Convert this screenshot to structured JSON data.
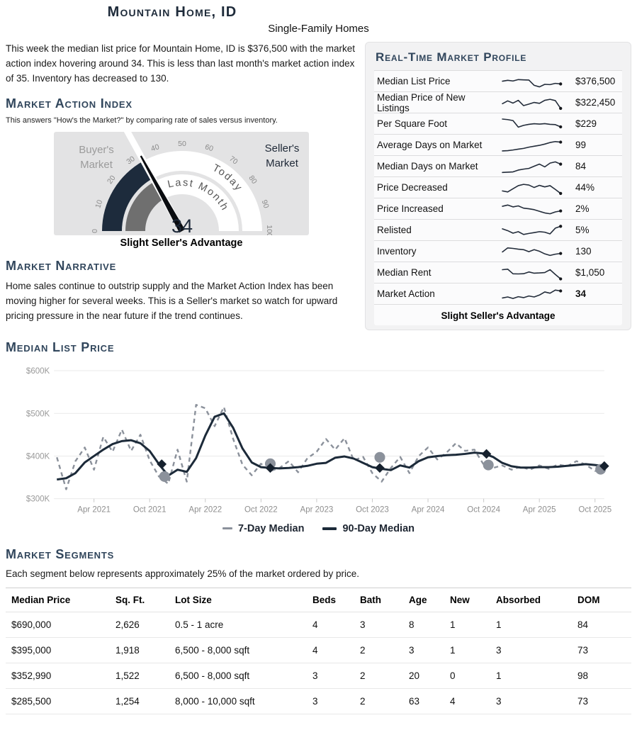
{
  "page": {
    "title": "Mountain Home, ID",
    "subtitle": "Single-Family Homes"
  },
  "intro": "This week the median list price for Mountain Home, ID is $376,500 with the market action index hovering around 34. This is less than last month's market action index of 35. Inventory has decreased to 130.",
  "market_action": {
    "heading": "Market Action Index",
    "subtext": "This answers \"How's the Market?\" by comparing rate of sales versus inventory.",
    "status": "Slight Seller's Advantage",
    "gauge": {
      "value": 34,
      "last_month": 35,
      "buyers_label": "Buyer's Market",
      "sellers_label": "Seller's Market",
      "today_label": "Today",
      "last_month_label": "Last Month",
      "ticks": [
        0,
        10,
        20,
        30,
        40,
        50,
        60,
        70,
        80,
        90,
        100
      ],
      "value_color": "#1d2b3c",
      "last_month_color": "#6f6f6f",
      "bg": "#e3e3e4",
      "needle_color": "#0a0c10",
      "tick_color": "#8a8a8a"
    }
  },
  "narrative": {
    "heading": "Market Narrative",
    "text": "Home sales continue to outstrip supply and the Market Action Index has been moving higher for several weeks. This is a Seller's market so watch for upward pricing pressure in the near future if the trend continues."
  },
  "profile": {
    "heading": "Real-Time Market Profile",
    "spark_color": "#232c3a",
    "rows": [
      {
        "label": "Median List Price",
        "value": "$376,500",
        "bold": false,
        "spark": [
          0.55,
          0.62,
          0.57,
          0.68,
          0.66,
          0.64,
          0.22,
          0.1,
          0.3,
          0.28,
          0.38,
          0.33
        ]
      },
      {
        "label": "Median Price of New Listings",
        "value": "$322,450",
        "bold": false,
        "spark": [
          0.45,
          0.68,
          0.5,
          0.72,
          0.3,
          0.42,
          0.55,
          0.48,
          0.72,
          0.8,
          0.7,
          0.08
        ]
      },
      {
        "label": "Per Square Foot",
        "value": "$229",
        "bold": false,
        "spark": [
          0.92,
          0.88,
          0.8,
          0.28,
          0.42,
          0.5,
          0.55,
          0.52,
          0.56,
          0.5,
          0.48,
          0.3
        ]
      },
      {
        "label": "Average Days on Market",
        "value": "99",
        "bold": false,
        "spark": [
          0.08,
          0.1,
          0.15,
          0.22,
          0.28,
          0.38,
          0.45,
          0.52,
          0.62,
          0.75,
          0.82,
          0.78
        ]
      },
      {
        "label": "Median Days on Market",
        "value": "84",
        "bold": false,
        "spark": [
          0.06,
          0.08,
          0.1,
          0.25,
          0.32,
          0.38,
          0.55,
          0.72,
          0.5,
          0.8,
          0.9,
          0.72
        ]
      },
      {
        "label": "Price Decreased",
        "value": "44%",
        "bold": false,
        "spark": [
          0.28,
          0.2,
          0.45,
          0.7,
          0.8,
          0.75,
          0.55,
          0.72,
          0.6,
          0.7,
          0.4,
          0.08
        ]
      },
      {
        "label": "Price Increased",
        "value": "2%",
        "bold": false,
        "spark": [
          0.75,
          0.85,
          0.7,
          0.78,
          0.6,
          0.55,
          0.48,
          0.35,
          0.22,
          0.15,
          0.3,
          0.38
        ]
      },
      {
        "label": "Relisted",
        "value": "5%",
        "bold": false,
        "spark": [
          0.65,
          0.5,
          0.3,
          0.42,
          0.2,
          0.28,
          0.35,
          0.42,
          0.38,
          0.25,
          0.7,
          0.85
        ]
      },
      {
        "label": "Inventory",
        "value": "130",
        "bold": false,
        "spark": [
          0.5,
          0.82,
          0.78,
          0.72,
          0.68,
          0.52,
          0.68,
          0.55,
          0.35,
          0.22,
          0.32,
          0.38
        ]
      },
      {
        "label": "Median Rent",
        "value": "$1,050",
        "bold": false,
        "spark": [
          0.78,
          0.82,
          0.45,
          0.44,
          0.46,
          0.6,
          0.5,
          0.52,
          0.55,
          0.78,
          0.4,
          0.05
        ]
      },
      {
        "label": "Market Action",
        "value": "34",
        "bold": true,
        "spark": [
          0.22,
          0.3,
          0.18,
          0.32,
          0.25,
          0.38,
          0.3,
          0.45,
          0.7,
          0.6,
          0.85,
          0.78
        ]
      }
    ],
    "footer": "Slight Seller's Advantage"
  },
  "chart_data": {
    "type": "line",
    "title": "Median List Price",
    "x_start": "2020-12",
    "x_interval": "month",
    "ylim": [
      300,
      600
    ],
    "yticks": [
      {
        "v": 300,
        "label": "$300K"
      },
      {
        "v": 400,
        "label": "$400K"
      },
      {
        "v": 500,
        "label": "$500K"
      },
      {
        "v": 600,
        "label": "$600K"
      }
    ],
    "xticks": [
      {
        "i": 4,
        "label": "Apr 2021"
      },
      {
        "i": 10,
        "label": "Oct 2021"
      },
      {
        "i": 16,
        "label": "Apr 2022"
      },
      {
        "i": 22,
        "label": "Oct 2022"
      },
      {
        "i": 28,
        "label": "Apr 2023"
      },
      {
        "i": 34,
        "label": "Oct 2023"
      },
      {
        "i": 40,
        "label": "Apr 2024"
      },
      {
        "i": 46,
        "label": "Oct 2024"
      },
      {
        "i": 52,
        "label": "Apr 2025"
      },
      {
        "i": 58,
        "label": "Oct 2025"
      }
    ],
    "series": [
      {
        "name": "7-Day Median",
        "style": "dashed",
        "color": "#8b919b",
        "unit": "$K",
        "values": [
          397,
          322,
          388,
          420,
          368,
          445,
          410,
          462,
          412,
          450,
          390,
          352,
          335,
          415,
          340,
          520,
          512,
          470,
          515,
          440,
          380,
          355,
          382,
          365,
          372,
          388,
          362,
          395,
          410,
          440,
          415,
          442,
          390,
          398,
          360,
          340,
          372,
          398,
          360,
          400,
          420,
          392,
          408,
          430,
          412,
          415,
          380,
          372,
          378,
          368,
          375,
          368,
          378,
          370,
          380,
          376,
          388,
          380,
          365,
          370
        ]
      },
      {
        "name": "90-Day Median",
        "style": "solid",
        "color": "#1c2a39",
        "unit": "$K",
        "values": [
          345,
          348,
          360,
          385,
          400,
          415,
          428,
          435,
          437,
          430,
          412,
          381,
          354,
          368,
          363,
          395,
          448,
          492,
          500,
          466,
          418,
          385,
          374,
          372,
          371,
          372,
          374,
          377,
          382,
          384,
          396,
          399,
          394,
          384,
          374,
          370,
          367,
          378,
          373,
          388,
          397,
          400,
          402,
          403,
          405,
          408,
          406,
          398,
          384,
          376,
          373,
          373,
          374,
          374,
          375,
          377,
          379,
          381,
          379,
          376.5
        ]
      }
    ],
    "markers": {
      "diamond_color": "#16212e",
      "circle_color": "#8b919b",
      "diamonds": [
        [
          11.3,
          381
        ],
        [
          23,
          372
        ],
        [
          34.8,
          372
        ],
        [
          46.3,
          405
        ],
        [
          59,
          376.5
        ]
      ],
      "circles": [
        [
          11.6,
          352
        ],
        [
          23,
          382
        ],
        [
          34.8,
          397
        ],
        [
          46.5,
          379
        ],
        [
          58.6,
          369
        ]
      ]
    },
    "legend_position": "bottom",
    "grid": true
  },
  "median_list_price_heading": "Median List Price",
  "segments": {
    "heading": "Market Segments",
    "description": "Each segment below represents approximately 25% of the market ordered by price.",
    "columns": [
      "Median Price",
      "Sq. Ft.",
      "Lot Size",
      "Beds",
      "Bath",
      "Age",
      "New",
      "Absorbed",
      "DOM"
    ],
    "rows": [
      [
        "$690,000",
        "2,626",
        "0.5 - 1 acre",
        "4",
        "3",
        "8",
        "1",
        "1",
        "84"
      ],
      [
        "$395,000",
        "1,918",
        "6,500 - 8,000 sqft",
        "4",
        "2",
        "3",
        "1",
        "3",
        "73"
      ],
      [
        "$352,990",
        "1,522",
        "6,500 - 8,000 sqft",
        "3",
        "2",
        "20",
        "0",
        "1",
        "98"
      ],
      [
        "$285,500",
        "1,254",
        "8,000 - 10,000 sqft",
        "3",
        "2",
        "63",
        "4",
        "3",
        "73"
      ]
    ]
  }
}
